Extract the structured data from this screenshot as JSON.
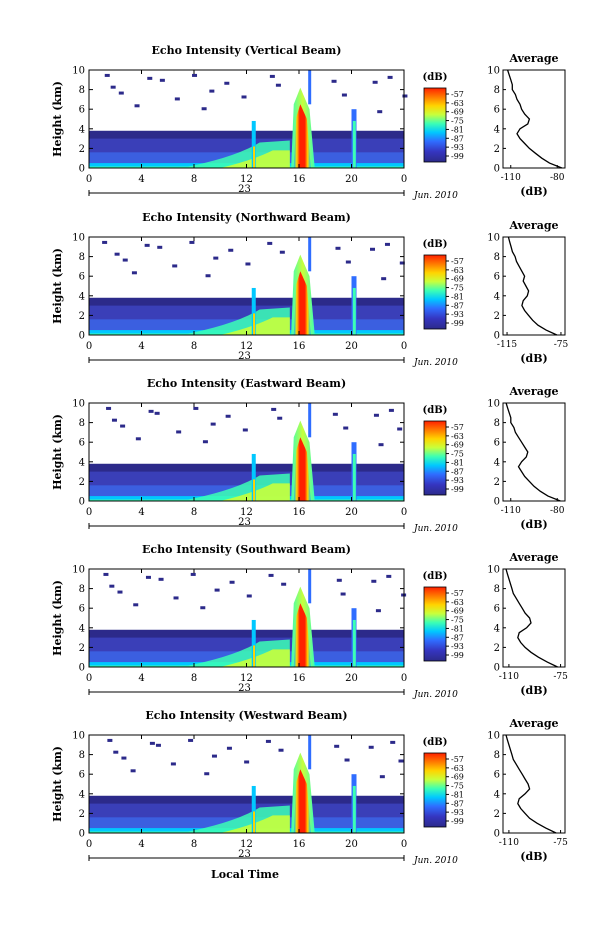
{
  "figure": {
    "month_label": "Jun. 2010",
    "xlabel": "Local Time",
    "day_label": "23"
  },
  "colorbar": {
    "unit": "(dB)",
    "ticks": [
      "-57",
      "-63",
      "-69",
      "-75",
      "-81",
      "-87",
      "-93",
      "-99"
    ],
    "colors": [
      "#ff2000",
      "#ff7a00",
      "#ffd400",
      "#c8ff3c",
      "#3cffb4",
      "#00c8ff",
      "#2f6dff",
      "#3535c0",
      "#2c2a8a"
    ]
  },
  "chart_data": [
    {
      "type": "heatmap",
      "title": "Echo Intensity (Vertical Beam)",
      "ylabel": "Height (km)",
      "ylim": [
        0,
        10
      ],
      "yticks": [
        "0",
        "2",
        "4",
        "6",
        "8",
        "10"
      ],
      "xlim": [
        0,
        24
      ],
      "xticks": [
        "0",
        "4",
        "8",
        "12",
        "16",
        "20",
        "0"
      ],
      "profile": {
        "title": "Average",
        "xlabel": "(dB)",
        "xlim": [
          -115,
          -75
        ],
        "xticks": [
          "-110",
          "-80"
        ],
        "points": [
          [
            -77,
            0
          ],
          [
            -85,
            0.5
          ],
          [
            -90,
            1.0
          ],
          [
            -94,
            1.5
          ],
          [
            -98,
            2.0
          ],
          [
            -101,
            2.5
          ],
          [
            -104,
            3.0
          ],
          [
            -106,
            3.5
          ],
          [
            -104,
            4.0
          ],
          [
            -99,
            4.5
          ],
          [
            -98,
            5.0
          ],
          [
            -101,
            5.5
          ],
          [
            -103,
            6.0
          ],
          [
            -104,
            6.5
          ],
          [
            -106,
            7.0
          ],
          [
            -107,
            7.5
          ],
          [
            -109,
            8.0
          ],
          [
            -109,
            8.5
          ],
          [
            -110,
            9.0
          ],
          [
            -111,
            9.5
          ],
          [
            -112,
            10.0
          ]
        ]
      }
    },
    {
      "type": "heatmap",
      "title": "Echo Intensity (Northward Beam)",
      "ylabel": "Height (km)",
      "ylim": [
        0,
        10
      ],
      "yticks": [
        "0",
        "2",
        "4",
        "6",
        "8",
        "10"
      ],
      "xlim": [
        0,
        24
      ],
      "xticks": [
        "0",
        "4",
        "8",
        "12",
        "16",
        "20",
        "0"
      ],
      "profile": {
        "title": "Average",
        "xlabel": "(dB)",
        "xlim": [
          -118,
          -72
        ],
        "xticks": [
          "-115",
          "-75"
        ],
        "points": [
          [
            -78,
            0
          ],
          [
            -86,
            0.5
          ],
          [
            -92,
            1.0
          ],
          [
            -96,
            1.5
          ],
          [
            -99,
            2.0
          ],
          [
            -102,
            2.5
          ],
          [
            -104,
            3.0
          ],
          [
            -103,
            3.5
          ],
          [
            -100,
            4.0
          ],
          [
            -99,
            4.5
          ],
          [
            -101,
            5.0
          ],
          [
            -103,
            5.5
          ],
          [
            -102,
            6.0
          ],
          [
            -104,
            6.5
          ],
          [
            -106,
            7.0
          ],
          [
            -108,
            7.5
          ],
          [
            -109,
            8.0
          ],
          [
            -111,
            8.5
          ],
          [
            -112,
            9.0
          ],
          [
            -113,
            9.5
          ],
          [
            -114,
            10.0
          ]
        ]
      }
    },
    {
      "type": "heatmap",
      "title": "Echo Intensity (Eastward Beam)",
      "ylabel": "Height (km)",
      "ylim": [
        0,
        10
      ],
      "yticks": [
        "0",
        "2",
        "4",
        "6",
        "8",
        "10"
      ],
      "xlim": [
        0,
        24
      ],
      "xticks": [
        "0",
        "4",
        "8",
        "12",
        "16",
        "20",
        "0"
      ],
      "profile": {
        "title": "Average",
        "xlabel": "(dB)",
        "xlim": [
          -115,
          -75
        ],
        "xticks": [
          "-110",
          "-80"
        ],
        "points": [
          [
            -78,
            0
          ],
          [
            -86,
            0.5
          ],
          [
            -91,
            1.0
          ],
          [
            -95,
            1.5
          ],
          [
            -98,
            2.0
          ],
          [
            -101,
            2.5
          ],
          [
            -103,
            3.0
          ],
          [
            -105,
            3.5
          ],
          [
            -103,
            4.0
          ],
          [
            -100,
            4.5
          ],
          [
            -99,
            5.0
          ],
          [
            -101,
            5.5
          ],
          [
            -103,
            6.0
          ],
          [
            -105,
            6.5
          ],
          [
            -107,
            7.0
          ],
          [
            -108,
            7.5
          ],
          [
            -110,
            8.0
          ],
          [
            -110,
            8.5
          ],
          [
            -111,
            9.0
          ],
          [
            -112,
            9.5
          ],
          [
            -113,
            10.0
          ]
        ]
      }
    },
    {
      "type": "heatmap",
      "title": "Echo Intensity (Southward Beam)",
      "ylabel": "Height (km)",
      "ylim": [
        0,
        10
      ],
      "yticks": [
        "0",
        "2",
        "4",
        "6",
        "8",
        "10"
      ],
      "xlim": [
        0,
        24
      ],
      "xticks": [
        "0",
        "4",
        "8",
        "12",
        "16",
        "20",
        "0"
      ],
      "profile": {
        "title": "Average",
        "xlabel": "(dB)",
        "xlim": [
          -114,
          -72
        ],
        "xticks": [
          "-110",
          "-75"
        ],
        "points": [
          [
            -77,
            0
          ],
          [
            -84,
            0.5
          ],
          [
            -90,
            1.0
          ],
          [
            -95,
            1.5
          ],
          [
            -99,
            2.0
          ],
          [
            -102,
            2.5
          ],
          [
            -104,
            3.0
          ],
          [
            -103,
            3.5
          ],
          [
            -98,
            4.0
          ],
          [
            -95,
            4.5
          ],
          [
            -96,
            5.0
          ],
          [
            -99,
            5.5
          ],
          [
            -101,
            6.0
          ],
          [
            -103,
            6.5
          ],
          [
            -105,
            7.0
          ],
          [
            -107,
            7.5
          ],
          [
            -108,
            8.0
          ],
          [
            -109,
            8.5
          ],
          [
            -110,
            9.0
          ],
          [
            -111,
            9.5
          ],
          [
            -112,
            10.0
          ]
        ]
      }
    },
    {
      "type": "heatmap",
      "title": "Echo Intensity (Westward Beam)",
      "ylabel": "Height (km)",
      "ylim": [
        0,
        10
      ],
      "yticks": [
        "0",
        "2",
        "4",
        "6",
        "8",
        "10"
      ],
      "xlim": [
        0,
        24
      ],
      "xticks": [
        "0",
        "4",
        "8",
        "12",
        "16",
        "20",
        "0"
      ],
      "profile": {
        "title": "Average",
        "xlabel": "(dB)",
        "xlim": [
          -114,
          -72
        ],
        "xticks": [
          "-110",
          "-75"
        ],
        "points": [
          [
            -78,
            0
          ],
          [
            -85,
            0.5
          ],
          [
            -91,
            1.0
          ],
          [
            -96,
            1.5
          ],
          [
            -99,
            2.0
          ],
          [
            -102,
            2.5
          ],
          [
            -104,
            3.0
          ],
          [
            -103,
            3.5
          ],
          [
            -99,
            4.0
          ],
          [
            -96,
            4.5
          ],
          [
            -97,
            5.0
          ],
          [
            -99,
            5.5
          ],
          [
            -101,
            6.0
          ],
          [
            -103,
            6.5
          ],
          [
            -105,
            7.0
          ],
          [
            -107,
            7.5
          ],
          [
            -108,
            8.0
          ],
          [
            -109,
            8.5
          ],
          [
            -110,
            9.0
          ],
          [
            -111,
            9.5
          ],
          [
            -112,
            10.0
          ]
        ]
      }
    }
  ]
}
